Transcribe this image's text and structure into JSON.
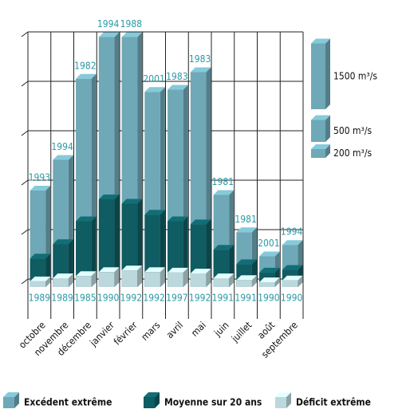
{
  "chart_data": {
    "type": "bar3d",
    "categories": [
      "octobre",
      "novembre",
      "décembre",
      "janvier",
      "février",
      "mars",
      "avril",
      "mai",
      "juin",
      "juillet",
      "août",
      "septembre"
    ],
    "ylim": [
      0,
      6000
    ],
    "series": [
      {
        "name": "Excédent extrême",
        "color": "#6fa8b6",
        "values": [
          2200,
          2900,
          4750,
          5700,
          5700,
          4450,
          4500,
          4900,
          2100,
          1250,
          700,
          960
        ],
        "years": [
          "1993",
          "1994",
          "1982",
          "1994",
          "1988",
          "2001",
          "1983",
          "1983",
          "1981",
          "1981",
          "2001",
          "1994"
        ]
      },
      {
        "name": "Moyenne sur 20 ans",
        "color": "#0f5c62",
        "values": [
          650,
          980,
          1500,
          2000,
          1900,
          1650,
          1500,
          1430,
          850,
          520,
          330,
          390
        ]
      },
      {
        "name": "Déficit extrême",
        "color": "#bcd8dc",
        "values": [
          130,
          200,
          250,
          340,
          380,
          340,
          330,
          310,
          200,
          160,
          110,
          150
        ],
        "years": [
          "1989",
          "1989",
          "1985",
          "1990",
          "1992",
          "1992",
          "1997",
          "1992",
          "1991",
          "1991",
          "1990",
          "1990"
        ]
      }
    ],
    "scale": [
      {
        "value": 1500,
        "label": "1500 m³/s"
      },
      {
        "value": 500,
        "label": "500 m³/s"
      },
      {
        "value": 200,
        "label": "200 m³/s"
      }
    ]
  }
}
